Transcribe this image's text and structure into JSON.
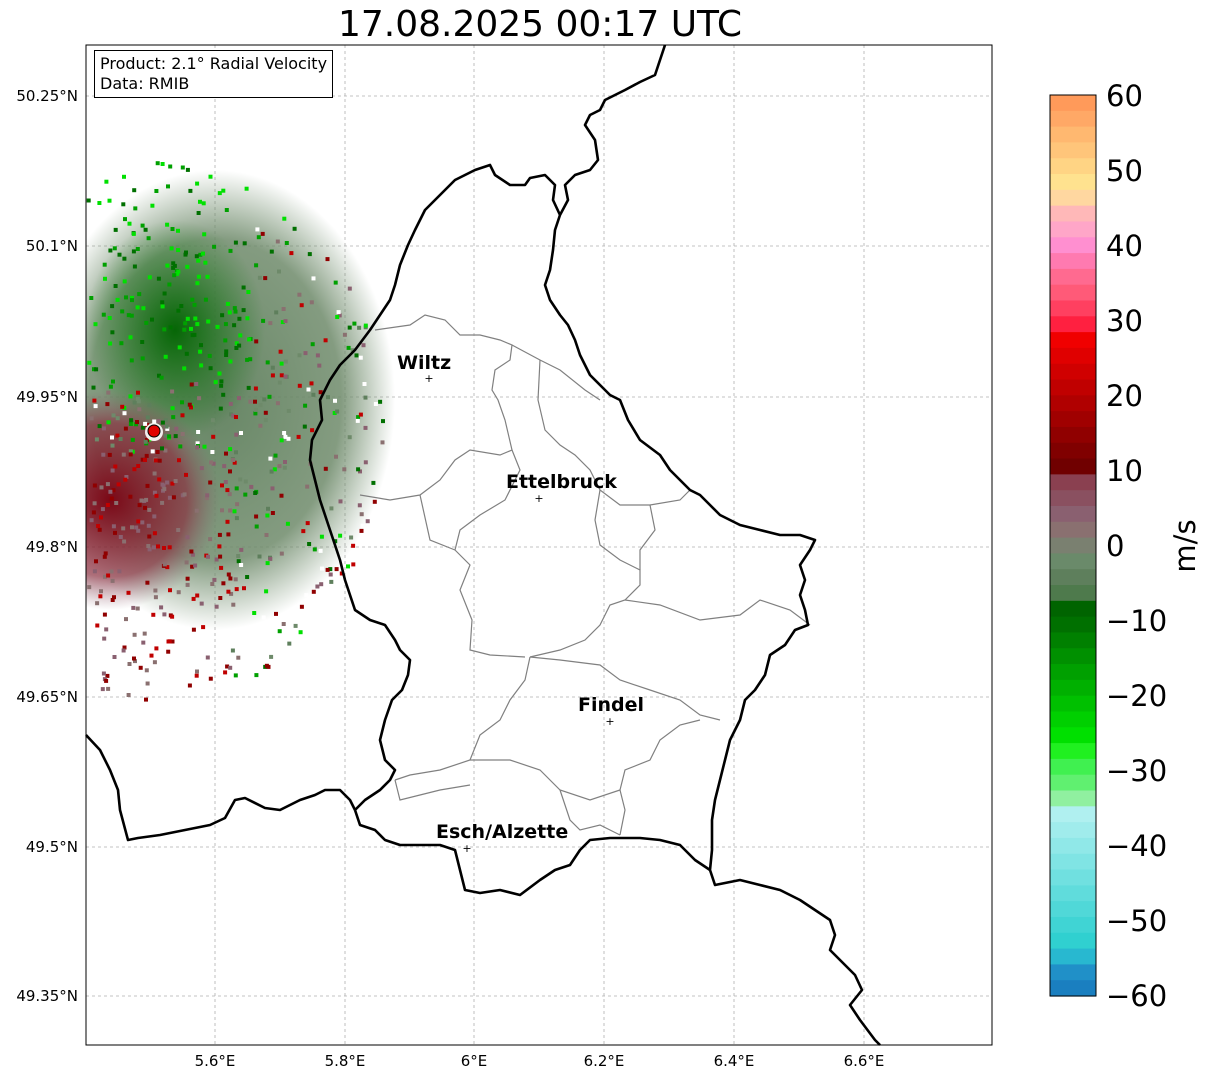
{
  "title": "17.08.2025 00:17 UTC",
  "info": {
    "product": "Product: 2.1° Radial Velocity",
    "source": "Data: RMIB"
  },
  "axes": {
    "lat_ticks": [
      "50.25°N",
      "50.1°N",
      "49.95°N",
      "49.8°N",
      "49.65°N",
      "49.5°N",
      "49.35°N"
    ],
    "lon_ticks": [
      "5.6°E",
      "5.8°E",
      "6°E",
      "6.2°E",
      "6.4°E",
      "6.6°E"
    ]
  },
  "cities": [
    {
      "name": "Wiltz"
    },
    {
      "name": "Ettelbruck"
    },
    {
      "name": "Findel"
    },
    {
      "name": "Esch/Alzette"
    }
  ],
  "colorbar": {
    "unit": "m/s",
    "ticks": [
      "60",
      "50",
      "40",
      "30",
      "20",
      "10",
      "0",
      "−10",
      "−20",
      "−30",
      "−40",
      "−50",
      "−60"
    ],
    "min": -60,
    "max": 60
  },
  "colors": {
    "radar_site": "#e00000",
    "country_border": "#000000",
    "canton_border": "#808080",
    "grid": "#b0b0b0"
  }
}
